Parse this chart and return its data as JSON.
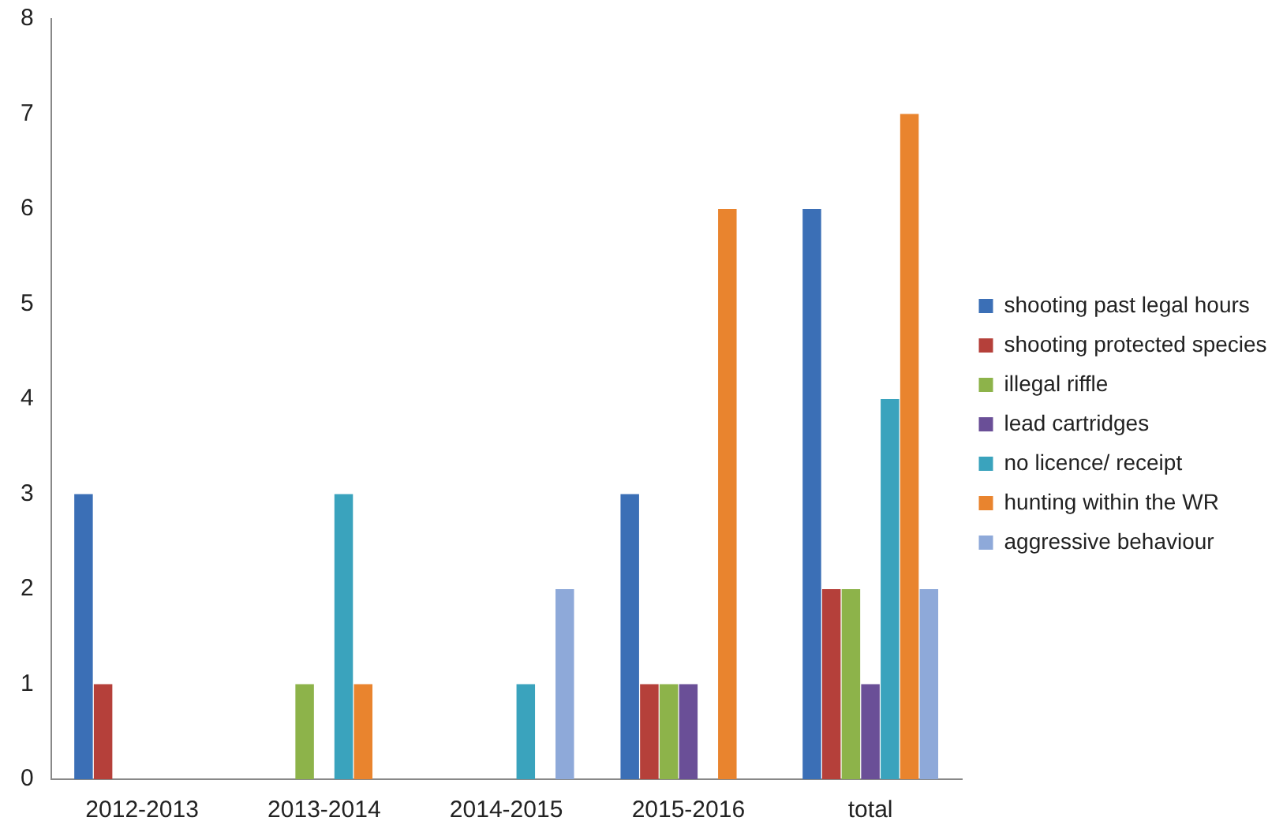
{
  "chart_data": {
    "type": "bar",
    "categories": [
      "2012-2013",
      "2013-2014",
      "2014-2015",
      "2015-2016",
      "total"
    ],
    "series": [
      {
        "name": "shooting past legal hours",
        "color": "#3b6fb6",
        "values": [
          3,
          0,
          0,
          3,
          6
        ]
      },
      {
        "name": "shooting protected species",
        "color": "#b5403a",
        "values": [
          1,
          0,
          0,
          1,
          2
        ]
      },
      {
        "name": "illegal riffle",
        "color": "#8db34a",
        "values": [
          0,
          1,
          0,
          1,
          2
        ]
      },
      {
        "name": "lead cartridges",
        "color": "#6a4f97",
        "values": [
          0,
          0,
          0,
          1,
          1
        ]
      },
      {
        "name": "no licence/ receipt",
        "color": "#3aa3bd",
        "values": [
          0,
          3,
          1,
          0,
          4
        ]
      },
      {
        "name": "hunting within the WR",
        "color": "#e9842e",
        "values": [
          0,
          1,
          0,
          6,
          7
        ]
      },
      {
        "name": "aggressive behaviour",
        "color": "#8ea9d9",
        "values": [
          0,
          0,
          2,
          0,
          2
        ]
      }
    ],
    "ylim": [
      0,
      8
    ],
    "yticks": [
      0,
      1,
      2,
      3,
      4,
      5,
      6,
      7,
      8
    ],
    "grid": false,
    "legend": "right"
  }
}
